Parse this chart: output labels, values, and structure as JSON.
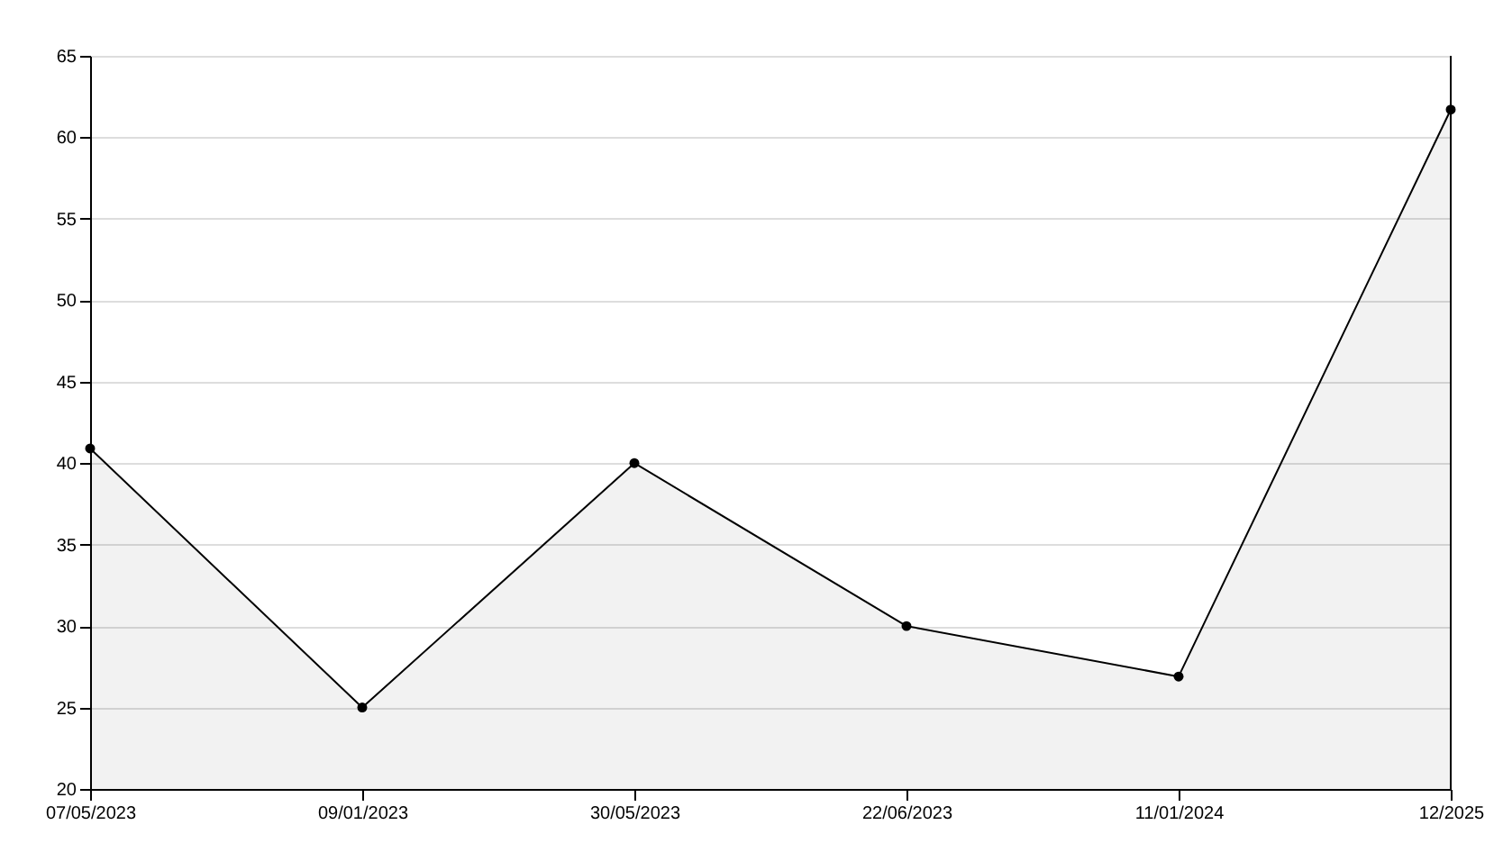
{
  "chart_data": {
    "type": "area",
    "categories": [
      "07/05/2023",
      "09/01/2023",
      "30/05/2023",
      "22/06/2023",
      "11/01/2024",
      "12/2025"
    ],
    "series": [
      {
        "color": "#000000",
        "values": [
          40.9,
          25,
          40,
          30,
          26.9,
          61.7
        ]
      }
    ],
    "ylim": [
      20,
      65
    ],
    "yticks": [
      20,
      25,
      30,
      35,
      40,
      45,
      50,
      55,
      60,
      65
    ],
    "grid": "y",
    "marker": "circle"
  }
}
